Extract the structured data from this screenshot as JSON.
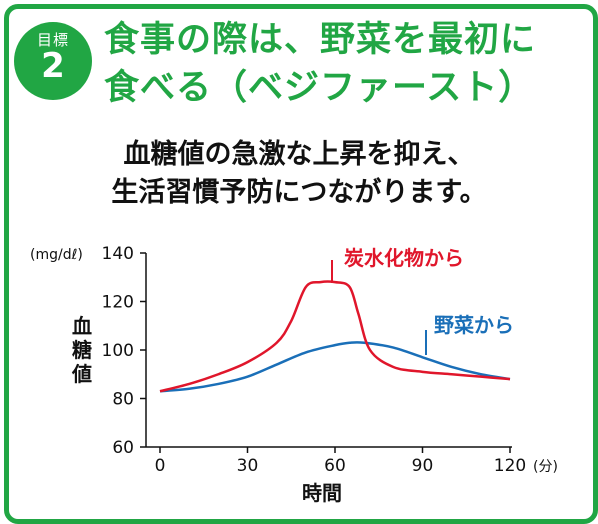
{
  "goal": {
    "badge_label": "目標",
    "badge_number": "2",
    "title_line1": "食事の際は、野菜を最初に",
    "title_line2": "食べる（ベジファースト）"
  },
  "description": {
    "line1": "血糖値の急激な上昇を抑え、",
    "line2": "生活習慣予防につながります。"
  },
  "colors": {
    "accent": "#21a644",
    "carb_series": "#e0162b",
    "veg_series": "#1a6fb8"
  },
  "chart_data": {
    "type": "line",
    "xlabel": "時間",
    "ylabel": "血糖値",
    "y_unit": "(mg/dℓ)",
    "x_unit": "(分)",
    "xlim": [
      0,
      120
    ],
    "ylim": [
      60,
      140
    ],
    "x_ticks": [
      "0",
      "30",
      "60",
      "90",
      "120"
    ],
    "y_ticks": [
      "60",
      "80",
      "100",
      "120",
      "140"
    ],
    "grid": false,
    "series": [
      {
        "name": "炭水化物から",
        "x": [
          0,
          10,
          20,
          30,
          40,
          45,
          50,
          55,
          60,
          65,
          68,
          72,
          80,
          90,
          100,
          110,
          120
        ],
        "y": [
          83,
          86,
          90,
          95,
          103,
          112,
          126,
          128,
          128,
          126,
          115,
          100,
          93,
          91,
          90,
          89,
          88
        ]
      },
      {
        "name": "野菜から",
        "x": [
          0,
          10,
          20,
          30,
          40,
          50,
          60,
          65,
          70,
          80,
          90,
          100,
          110,
          120
        ],
        "y": [
          83,
          84,
          86,
          89,
          94,
          99,
          102,
          103,
          103,
          101,
          97,
          93,
          90,
          88
        ]
      }
    ]
  }
}
